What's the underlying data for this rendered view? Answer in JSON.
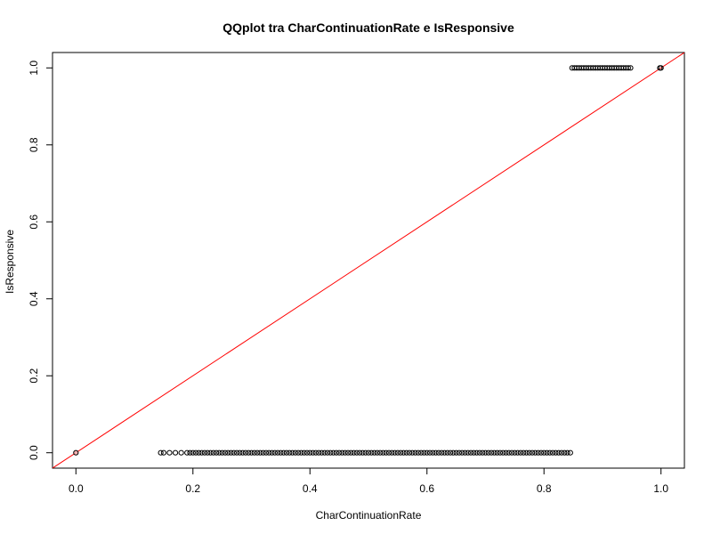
{
  "chart_data": {
    "type": "scatter",
    "title": "QQplot tra CharContinuationRate e IsResponsive",
    "xlabel": "CharContinuationRate",
    "ylabel": "IsResponsive",
    "xlim": [
      -0.04,
      1.04
    ],
    "ylim": [
      -0.04,
      1.04
    ],
    "xticks": [
      "0.0",
      "0.2",
      "0.4",
      "0.6",
      "0.8",
      "1.0"
    ],
    "yticks": [
      "0.0",
      "0.2",
      "0.4",
      "0.6",
      "0.8",
      "1.0"
    ],
    "grid": false,
    "legend": "none",
    "reference_line": {
      "slope": 1,
      "intercept": 0,
      "color": "#ff0000"
    },
    "point_color": "#000000",
    "series": [
      {
        "values": [
          {
            "x": 0.0,
            "y": 0,
            "marker_color": "#ff0000"
          },
          {
            "x": 0.145,
            "y": 0
          },
          {
            "x": 0.15,
            "y": 0
          },
          {
            "x": 0.16,
            "y": 0
          },
          {
            "x": 0.17,
            "y": 0
          },
          {
            "x": 0.18,
            "y": 0
          },
          {
            "x": 0.19,
            "y": 0
          },
          {
            "x_range": [
              0.195,
              0.495
            ],
            "step": 0.005,
            "y": 0
          },
          {
            "x": 0.5,
            "y": 0
          },
          {
            "x_range": [
              0.505,
              0.845
            ],
            "step": 0.005,
            "y": 0
          },
          {
            "x_range": [
              0.848,
              0.95
            ],
            "step": 0.004,
            "y": 1
          },
          {
            "x": 1.0,
            "y": 1
          },
          {
            "x": 0.998,
            "y": 1
          }
        ]
      }
    ]
  }
}
